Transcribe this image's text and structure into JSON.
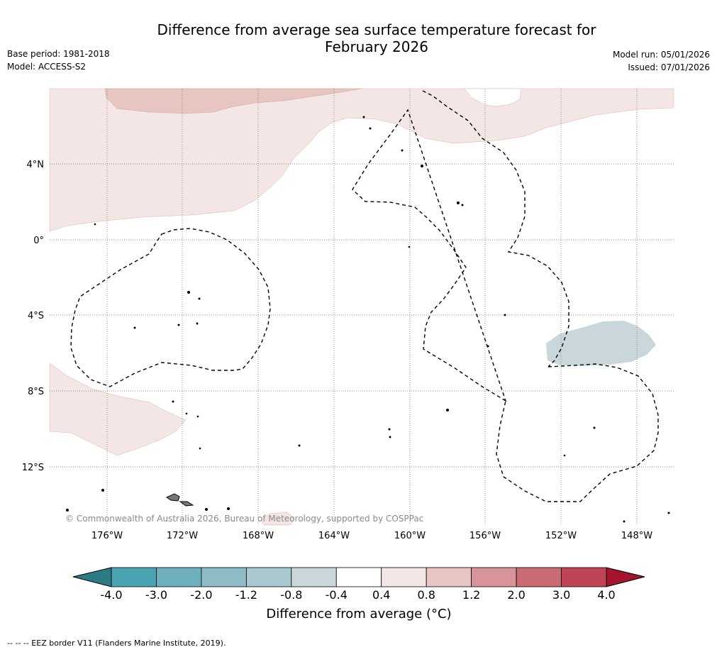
{
  "title_line1": "Difference from average sea surface temperature forecast for",
  "title_line2": "February 2026",
  "base_period": "Base period: 1981-2018",
  "model": "Model: ACCESS-S2",
  "model_run": "Model run: 05/01/2026",
  "issued": "Issued: 07/01/2026",
  "lat_labels": [
    "4°N",
    "0°",
    "4°S",
    "8°S",
    "12°S"
  ],
  "lon_labels": [
    "176°W",
    "172°W",
    "168°W",
    "164°W",
    "160°W",
    "156°W",
    "152°W",
    "148°W"
  ],
  "copyright": "© Commonwealth of Australia 2026, Bureau of Meteorology, supported by COSPPac",
  "colorbar": {
    "ticks": [
      "-4.0",
      "-3.0",
      "-2.0",
      "-1.2",
      "-0.8",
      "-0.4",
      "0.4",
      "0.8",
      "1.2",
      "2.0",
      "3.0",
      "4.0"
    ],
    "colors": [
      "#4aa3b3",
      "#6eafbd",
      "#8dbbc6",
      "#aac8cf",
      "#c9d7da",
      "#ffffff",
      "#f3e6e4",
      "#e7c5c1",
      "#d8949a",
      "#c96a74",
      "#bf4556"
    ],
    "low_extend_color": "#2e7a84",
    "high_extend_color": "#a51530",
    "label": "Difference from average (°C)"
  },
  "eez_note": "--  --  -- EEZ border V11 (Flanders Marine Institute, 2019)."
}
